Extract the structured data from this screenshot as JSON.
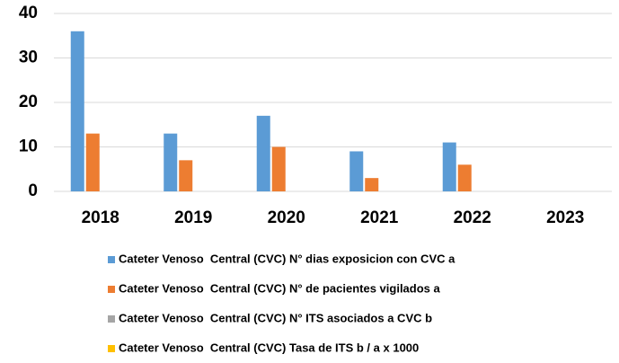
{
  "chart_data": {
    "type": "bar",
    "categories": [
      "2018",
      "2019",
      "2020",
      "2021",
      "2022",
      "2023"
    ],
    "series": [
      {
        "name": "Cateter Venoso  Central (CVC) N° dias exposicion con CVC a",
        "color": "#5b9bd5",
        "values": [
          36,
          13,
          17,
          9,
          11,
          null
        ]
      },
      {
        "name": "Cateter Venoso  Central (CVC) N° de pacientes vigilados a",
        "color": "#ed7d31",
        "values": [
          13,
          7,
          10,
          3,
          6,
          null
        ]
      },
      {
        "name": "Cateter Venoso  Central (CVC) N° ITS asociados a CVC b",
        "color": "#a5a5a5",
        "values": [
          0,
          0,
          0,
          0,
          0,
          null
        ]
      },
      {
        "name": "Cateter Venoso  Central (CVC) Tasa de ITS b / a x 1000",
        "color": "#ffc000",
        "values": [
          0,
          0,
          0,
          0,
          0,
          null
        ]
      }
    ],
    "ylim": [
      0,
      40
    ],
    "yticks": [
      0,
      10,
      20,
      30,
      40
    ],
    "grid": true,
    "legend": "bottom"
  }
}
